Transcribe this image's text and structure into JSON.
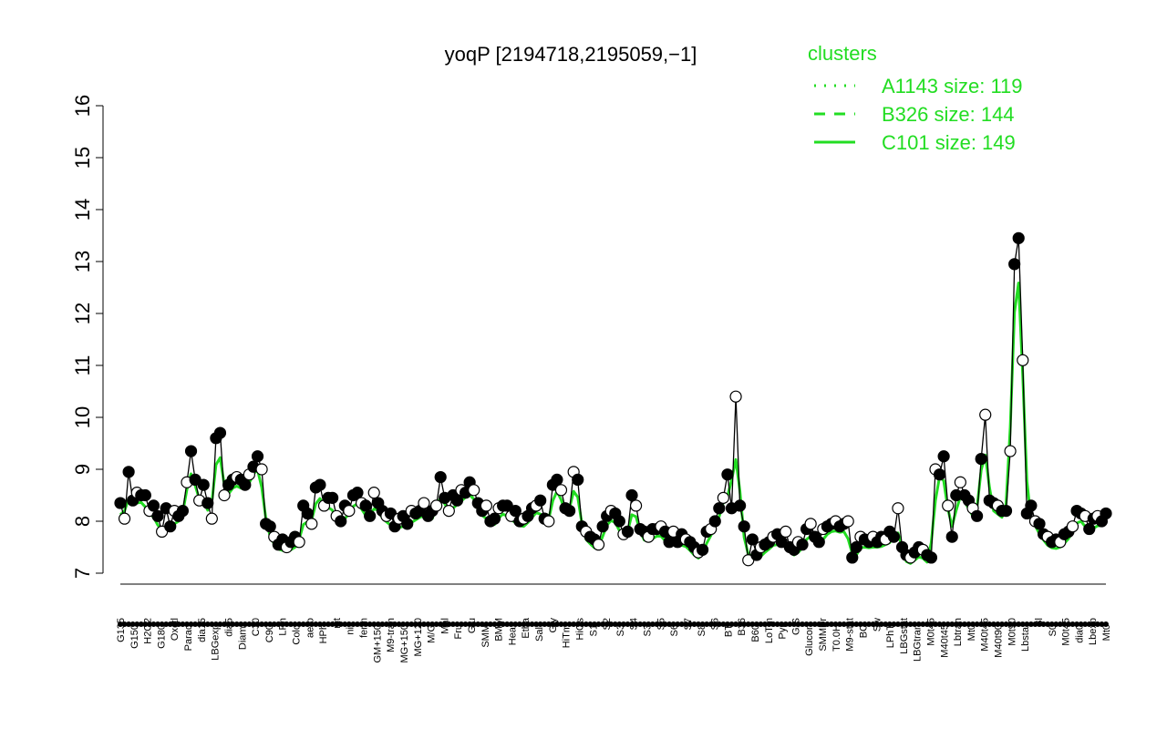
{
  "chart_data": {
    "type": "line",
    "title": "yoqP [2194718,2195059,−1]",
    "xlabel": "",
    "ylabel": "",
    "ylim": [
      7,
      16
    ],
    "yticks": [
      7,
      8,
      9,
      10,
      11,
      12,
      13,
      14,
      15,
      16
    ],
    "grid": false,
    "legend_position": "top-right",
    "legend": {
      "title": "clusters",
      "entries": [
        {
          "label": "A1143 size: 119",
          "style": "dotted"
        },
        {
          "label": "B326 size: 144",
          "style": "dashed"
        },
        {
          "label": "C101 size: 149",
          "style": "solid"
        }
      ]
    },
    "colors": {
      "cluster_line": "#22dd22",
      "points": "#000000",
      "text": "#000000"
    },
    "categories_top": [
      "G135",
      "H2O2",
      "Oxctl",
      "dia15",
      "dia5",
      "C30",
      "LPh",
      "aero",
      "nit",
      "ferm",
      "M9-tran",
      "MG+120",
      "Mal",
      "Glu",
      "BMM",
      "Etha",
      "Gly",
      "HiOs",
      "S2",
      "S4",
      "S5",
      "S7",
      "S6",
      "B36",
      "LoTm",
      "G/S",
      "SMMPr",
      "M9-stat",
      "Sw",
      "LBGstat",
      "M0t45",
      "Lbtran",
      "M40t45",
      "M0t90",
      "Bl",
      "M0t45",
      "Lbexp"
    ],
    "categories_bottom": [
      "G150",
      "G180",
      "Paraq",
      "LBGexp",
      "Diami",
      "C90",
      "Cold",
      "HPh",
      "nit",
      "GM+150",
      "MG+150",
      "M/G",
      "Fru",
      "SMM",
      "Heat",
      "Salt",
      "HiTm",
      "S1",
      "S3",
      "S3",
      "S6",
      "S8",
      "BT",
      "B60",
      "Pyr",
      "Glucon",
      "T0.0H",
      "BC",
      "LPhT",
      "LBGtran",
      "M40t45",
      "Mt0",
      "M40t90",
      "Lbstat",
      "S0",
      "dia0",
      "Mt0"
    ],
    "points": [
      8.35,
      8.05,
      8.95,
      8.4,
      8.55,
      8.5,
      8.5,
      8.2,
      8.3,
      8.1,
      7.8,
      8.25,
      7.9,
      8.2,
      8.1,
      8.2,
      8.75,
      9.35,
      8.8,
      8.4,
      8.7,
      8.35,
      8.05,
      9.6,
      9.7,
      8.5,
      8.7,
      8.8,
      8.85,
      8.8,
      8.7,
      8.9,
      9.05,
      9.25,
      9.0,
      7.95,
      7.9,
      7.7,
      7.55,
      7.65,
      7.5,
      7.6,
      7.7,
      7.6,
      8.3,
      8.15,
      7.95,
      8.65,
      8.7,
      8.3,
      8.45,
      8.45,
      8.1,
      8.0,
      8.3,
      8.2,
      8.5,
      8.55,
      8.35,
      8.3,
      8.1,
      8.55,
      8.35,
      8.2,
      8.1,
      8.15,
      7.9,
      8.05,
      8.1,
      7.95,
      8.2,
      8.15,
      8.2,
      8.35,
      8.1,
      8.2,
      8.3,
      8.85,
      8.45,
      8.2,
      8.5,
      8.4,
      8.6,
      8.55,
      8.75,
      8.6,
      8.35,
      8.2,
      8.3,
      8.0,
      8.05,
      8.25,
      8.3,
      8.3,
      8.1,
      8.2,
      8.0,
      8.05,
      8.1,
      8.25,
      8.3,
      8.4,
      8.05,
      8.0,
      8.7,
      8.8,
      8.6,
      8.25,
      8.2,
      8.95,
      8.8,
      7.9,
      7.8,
      7.7,
      7.65,
      7.55,
      7.9,
      8.1,
      8.2,
      8.15,
      8.0,
      7.75,
      7.8,
      8.5,
      8.3,
      7.85,
      7.8,
      7.7,
      7.85,
      7.85,
      7.9,
      7.8,
      7.6,
      7.8,
      7.6,
      7.75,
      7.65,
      7.6,
      7.5,
      7.4,
      7.45,
      7.8,
      7.85,
      8.0,
      8.25,
      8.45,
      8.9,
      8.25,
      10.4,
      8.3,
      7.9,
      7.25,
      7.65,
      7.35,
      7.5,
      7.55,
      7.6,
      7.7,
      7.75,
      7.6,
      7.8,
      7.5,
      7.45,
      7.6,
      7.55,
      7.85,
      7.95,
      7.7,
      7.6,
      7.85,
      7.9,
      7.95,
      8.0,
      7.9,
      7.95,
      8.0,
      7.3,
      7.5,
      7.7,
      7.65,
      7.6,
      7.7,
      7.6,
      7.7,
      7.65,
      7.8,
      7.7,
      8.25,
      7.5,
      7.35,
      7.3,
      7.4,
      7.5,
      7.45,
      7.35,
      7.3,
      9.0,
      8.9,
      9.25,
      8.3,
      7.7,
      8.5,
      8.75,
      8.5,
      8.4,
      8.25,
      8.1,
      9.2,
      10.05,
      8.4,
      8.35,
      8.3,
      8.2,
      8.2,
      9.35,
      12.95,
      13.45,
      11.1,
      8.15,
      8.3,
      8.0,
      7.95,
      7.75,
      7.7,
      7.6,
      7.65,
      7.6,
      7.75,
      7.8,
      7.9,
      8.2,
      8.15,
      8.1,
      7.85,
      8.05,
      8.1,
      8.0,
      8.15
    ]
  }
}
